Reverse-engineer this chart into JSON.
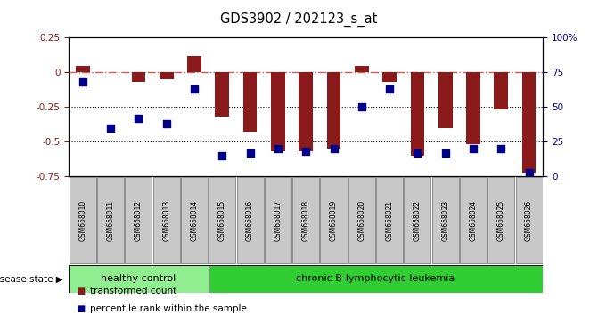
{
  "title": "GDS3902 / 202123_s_at",
  "samples": [
    "GSM658010",
    "GSM658011",
    "GSM658012",
    "GSM658013",
    "GSM658014",
    "GSM658015",
    "GSM658016",
    "GSM658017",
    "GSM658018",
    "GSM658019",
    "GSM658020",
    "GSM658021",
    "GSM658022",
    "GSM658023",
    "GSM658024",
    "GSM658025",
    "GSM658026"
  ],
  "red_values": [
    0.05,
    0.0,
    -0.07,
    -0.05,
    0.12,
    -0.32,
    -0.43,
    -0.57,
    -0.57,
    -0.55,
    0.05,
    -0.07,
    -0.6,
    -0.4,
    -0.52,
    -0.27,
    -0.72
  ],
  "blue_pct": [
    68,
    35,
    42,
    38,
    63,
    15,
    17,
    20,
    18,
    20,
    50,
    63,
    17,
    17,
    20,
    20,
    3
  ],
  "ylim_left": [
    -0.75,
    0.25
  ],
  "ylim_right": [
    0,
    100
  ],
  "yticks_left": [
    0.25,
    0.0,
    -0.25,
    -0.5,
    -0.75
  ],
  "ytick_labels_left": [
    "0.25",
    "0",
    "-0.25",
    "-0.5",
    "-0.75"
  ],
  "yticks_right": [
    100,
    75,
    50,
    25,
    0
  ],
  "ytick_labels_right": [
    "100%",
    "75",
    "50",
    "25",
    "0"
  ],
  "healthy_count": 5,
  "group1_label": "healthy control",
  "group2_label": "chronic B-lymphocytic leukemia",
  "disease_state_label": "disease state",
  "legend1": "transformed count",
  "legend2": "percentile rank within the sample",
  "bar_color": "#8B1A1A",
  "dot_color": "#00008B",
  "dashed_line_color": "#CD5C5C",
  "bg_color": "#ffffff",
  "group1_color": "#90EE90",
  "group2_color": "#32CD32",
  "xtick_bg": "#C8C8C8",
  "xtick_edge": "#808080"
}
